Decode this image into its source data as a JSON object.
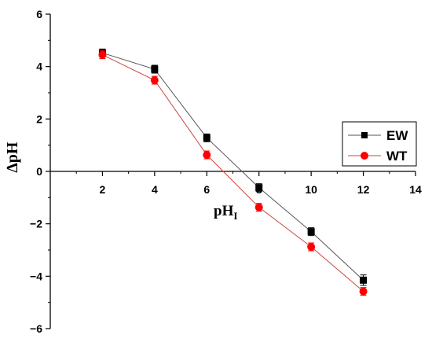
{
  "chart_data": {
    "type": "line",
    "xlabel": "pH",
    "xlabel_subscript": "I",
    "ylabel": "∆pH",
    "xlim": [
      0,
      14
    ],
    "ylim": [
      -6,
      6
    ],
    "x_ticks": [
      2,
      4,
      6,
      8,
      10,
      12,
      14
    ],
    "y_ticks": [
      6,
      4,
      2,
      0,
      -2,
      -4,
      -6
    ],
    "x_tick_labels": [
      "2",
      "4",
      "6",
      "8",
      "10",
      "12",
      "14"
    ],
    "y_tick_labels": [
      "6",
      "4",
      "2",
      "0",
      "−2",
      "−4",
      "−6"
    ],
    "grid": false,
    "legend_position": "right",
    "x": [
      2,
      4,
      6,
      8,
      10,
      12
    ],
    "series": [
      {
        "name": "EW",
        "marker": "square",
        "color": "#000000",
        "line_color": "#555555",
        "values": [
          4.52,
          3.9,
          1.28,
          -0.62,
          -2.3,
          -4.15
        ],
        "errors": [
          0.15,
          0.15,
          0.15,
          0.15,
          0.15,
          0.2
        ]
      },
      {
        "name": "WT",
        "marker": "circle",
        "color": "#ff0000",
        "line_color": "#cc4444",
        "values": [
          4.45,
          3.48,
          0.63,
          -1.37,
          -2.88,
          -4.58
        ],
        "errors": [
          0.15,
          0.15,
          0.15,
          0.15,
          0.15,
          0.15
        ]
      }
    ]
  }
}
